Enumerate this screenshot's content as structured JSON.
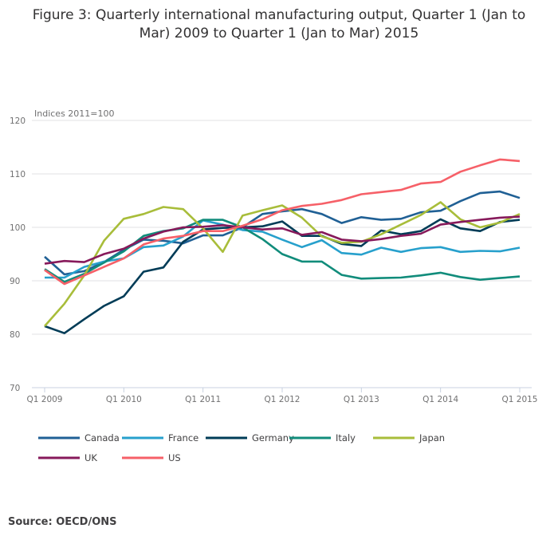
{
  "title": "Figure 3: Quarterly international manufacturing output, Quarter 1 (Jan to Mar) 2009 to Quarter 1 (Jan to Mar) 2015",
  "source": "Source: OECD/ONS",
  "chart_data": {
    "type": "line",
    "title": "Figure 3: Quarterly international manufacturing output, Quarter 1 (Jan to Mar) 2009 to Quarter 1 (Jan to Mar) 2015",
    "ylabel": "Indices 2011=100",
    "xlabel": "",
    "ylim": [
      70,
      120
    ],
    "yticks": [
      "70",
      "80",
      "90",
      "100",
      "110",
      "120"
    ],
    "xtick_labels": [
      "Q1 2009",
      "Q1 2010",
      "Q1 2011",
      "Q1 2012",
      "Q1 2013",
      "Q1 2014",
      "Q1 2015"
    ],
    "grid": "horizontal",
    "legend": "bottom",
    "x": [
      "Q1 2009",
      "Q2 2009",
      "Q3 2009",
      "Q4 2009",
      "Q1 2010",
      "Q2 2010",
      "Q3 2010",
      "Q4 2010",
      "Q1 2011",
      "Q2 2011",
      "Q3 2011",
      "Q4 2011",
      "Q1 2012",
      "Q2 2012",
      "Q3 2012",
      "Q4 2012",
      "Q1 2013",
      "Q2 2013",
      "Q3 2013",
      "Q4 2013",
      "Q1 2014",
      "Q2 2014",
      "Q3 2014",
      "Q4 2014",
      "Q1 2015"
    ],
    "series": [
      {
        "name": "Canada",
        "color": "#206095",
        "values": [
          94.5,
          91.2,
          91.8,
          93.5,
          95.8,
          97.7,
          97.5,
          97.0,
          98.5,
          98.5,
          100,
          102.5,
          103.0,
          103.4,
          102.5,
          100.8,
          101.9,
          101.4,
          101.6,
          102.8,
          103.1,
          104.9,
          106.4,
          106.7,
          105.5
        ]
      },
      {
        "name": "France",
        "color": "#27a0cc",
        "values": [
          90.6,
          90.6,
          92.6,
          93.6,
          94.2,
          96.3,
          96.6,
          98.3,
          101.3,
          100.5,
          99.5,
          99.2,
          97.7,
          96.3,
          97.6,
          95.2,
          94.9,
          96.2,
          95.4,
          96.1,
          96.3,
          95.4,
          95.6,
          95.5,
          96.2
        ]
      },
      {
        "name": "Germany",
        "color": "#003c57",
        "values": [
          81.5,
          80.2,
          82.8,
          85.3,
          87.1,
          91.7,
          92.5,
          97.3,
          99.6,
          99.9,
          100,
          100.2,
          101.1,
          98.4,
          98.4,
          96.9,
          96.5,
          99.4,
          98.7,
          99.3,
          101.5,
          99.8,
          99.3,
          101.0,
          101.4
        ]
      },
      {
        "name": "Italy",
        "color": "#118c7b",
        "values": [
          92.2,
          89.8,
          91.3,
          93.4,
          95.5,
          98.4,
          99.3,
          99.8,
          101.4,
          101.4,
          100,
          97.8,
          95.0,
          93.6,
          93.6,
          91.1,
          90.4,
          90.5,
          90.6,
          91.0,
          91.5,
          90.7,
          90.2,
          90.5,
          90.8
        ]
      },
      {
        "name": "Japan",
        "color": "#a8bd3a",
        "values": [
          81.5,
          85.7,
          91.0,
          97.5,
          101.6,
          102.5,
          103.8,
          103.4,
          99.8,
          95.4,
          102.2,
          103.2,
          104.1,
          101.8,
          98.3,
          97.1,
          97.3,
          98.7,
          100.5,
          102.3,
          104.7,
          101.5,
          100.0,
          100.9,
          102.5
        ]
      },
      {
        "name": "UK",
        "color": "#871a5b",
        "values": [
          93.2,
          93.7,
          93.5,
          95.0,
          96.0,
          97.9,
          99.2,
          100,
          100.1,
          100.4,
          100,
          99.6,
          99.8,
          98.6,
          99.1,
          97.7,
          97.4,
          97.8,
          98.4,
          98.8,
          100.5,
          101.0,
          101.4,
          101.8,
          102.0
        ]
      },
      {
        "name": "US",
        "color": "#f66068",
        "values": [
          92.0,
          89.4,
          91.0,
          92.6,
          94.2,
          96.8,
          97.9,
          98.4,
          99.3,
          99.3,
          100.3,
          101.5,
          103.2,
          104.0,
          104.4,
          105.1,
          106.2,
          106.6,
          107.0,
          108.2,
          108.5,
          110.4,
          111.6,
          112.7,
          112.4
        ]
      }
    ]
  }
}
